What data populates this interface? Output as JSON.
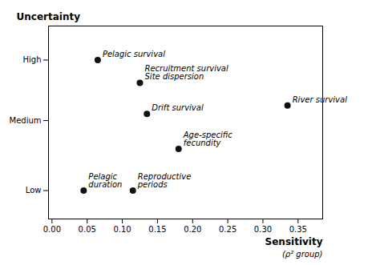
{
  "chart_data": {
    "type": "scatter",
    "x": [
      0.065,
      0.125,
      0.335,
      0.135,
      0.18,
      0.045,
      0.115
    ],
    "values": [
      0.82,
      0.7,
      0.58,
      0.535,
      0.35,
      0.13,
      0.13
    ],
    "labels": [
      "Pelagic survival",
      "Recruitment survival\nSite dispersion",
      "River survival",
      "Drift survival",
      "Age-specific\nfecundity",
      "Pelagic\nduration",
      "Reproductive\nperiods"
    ],
    "color": "#111111",
    "ylabel": "Uncertainty",
    "xlabel": "Sensitivity",
    "xlabel_sub": "(ρ² group)",
    "xlim": [
      -0.005,
      0.385
    ],
    "ylim": [
      -0.02,
      1.0
    ],
    "xticks": [
      {
        "value": 0.0,
        "label": "0.00"
      },
      {
        "value": 0.05,
        "label": "0.05"
      },
      {
        "value": 0.1,
        "label": "0.10"
      },
      {
        "value": 0.15,
        "label": "0.15"
      },
      {
        "value": 0.2,
        "label": "0.20"
      },
      {
        "value": 0.25,
        "label": "0.25"
      },
      {
        "value": 0.3,
        "label": "0.30"
      },
      {
        "value": 0.35,
        "label": "0.35"
      }
    ],
    "yticks": [
      {
        "value": 0.13,
        "label": "Low"
      },
      {
        "value": 0.5,
        "label": "Medium"
      },
      {
        "value": 0.82,
        "label": "High"
      }
    ]
  }
}
